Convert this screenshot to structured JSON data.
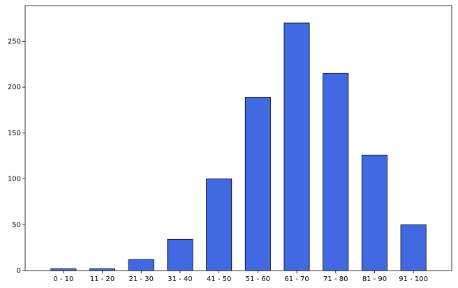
{
  "chart_data": {
    "type": "bar",
    "categories": [
      "0 - 10",
      "11 - 20",
      "21 - 30",
      "31 - 40",
      "41 - 50",
      "51 - 60",
      "61 - 70",
      "71 - 80",
      "81 - 90",
      "91 - 100"
    ],
    "values": [
      2,
      2,
      12,
      34,
      100,
      189,
      270,
      215,
      126,
      50
    ],
    "color": "#4169e1",
    "edge_color": "#000000",
    "ylim": [
      0,
      289
    ],
    "yticks": [
      0,
      50,
      100,
      150,
      200,
      250
    ],
    "grid": false
  }
}
